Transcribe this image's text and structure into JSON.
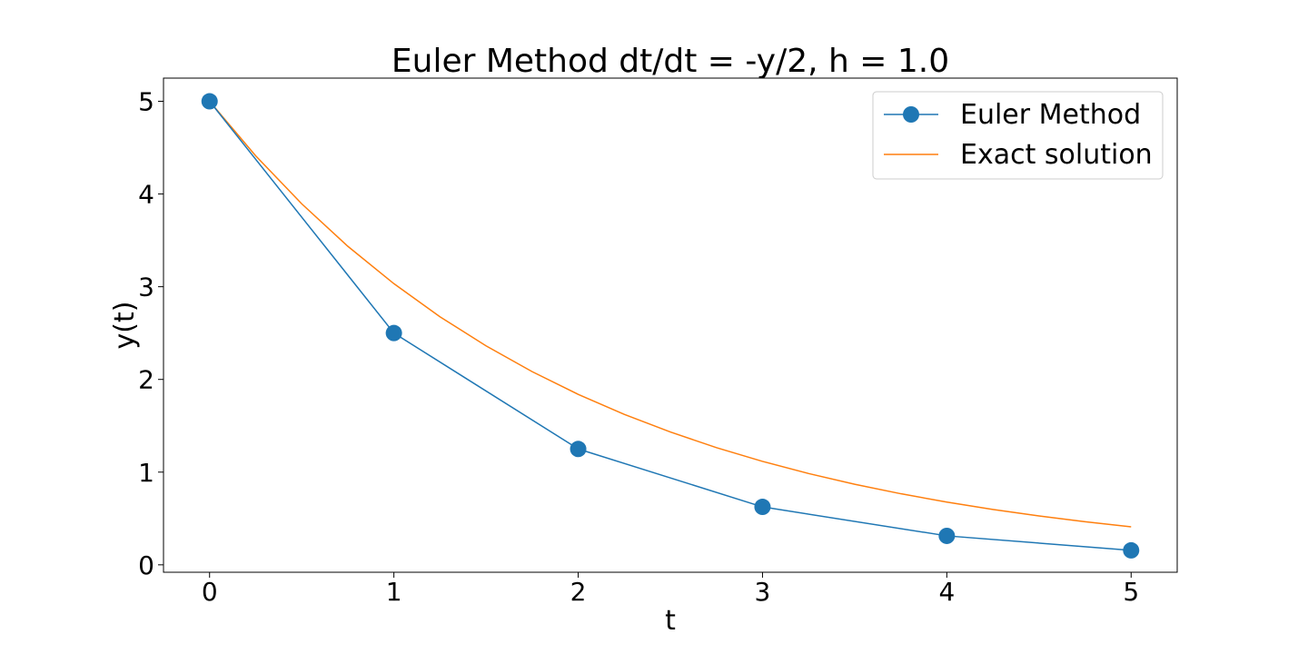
{
  "chart_data": {
    "type": "line",
    "title": "Euler Method dt/dt = -y/2, h = 1.0",
    "xlabel": "t",
    "ylabel": "y(t)",
    "xlim": [
      -0.25,
      5.25
    ],
    "ylim": [
      -0.08,
      5.25
    ],
    "xticks": [
      0,
      1,
      2,
      3,
      4,
      5
    ],
    "yticks": [
      0,
      1,
      2,
      3,
      4,
      5
    ],
    "grid": false,
    "legend_position": "upper right",
    "series": [
      {
        "name": "Euler Method",
        "style": "line-with-markers",
        "color": "#1f77b4",
        "x": [
          0,
          1,
          2,
          3,
          4,
          5
        ],
        "y": [
          5,
          2.5,
          1.25,
          0.625,
          0.3125,
          0.15625
        ]
      },
      {
        "name": "Exact solution",
        "style": "line",
        "color": "#ff7f0e",
        "x": [
          0,
          0.25,
          0.5,
          0.75,
          1,
          1.25,
          1.5,
          1.75,
          2,
          2.25,
          2.5,
          2.75,
          3,
          3.25,
          3.5,
          3.75,
          4,
          4.25,
          4.5,
          4.75,
          5
        ],
        "y": [
          5,
          4.412,
          3.894,
          3.436,
          3.033,
          2.676,
          2.362,
          2.084,
          1.839,
          1.623,
          1.433,
          1.264,
          1.116,
          0.985,
          0.869,
          0.767,
          0.677,
          0.597,
          0.527,
          0.465,
          0.41
        ]
      }
    ]
  }
}
